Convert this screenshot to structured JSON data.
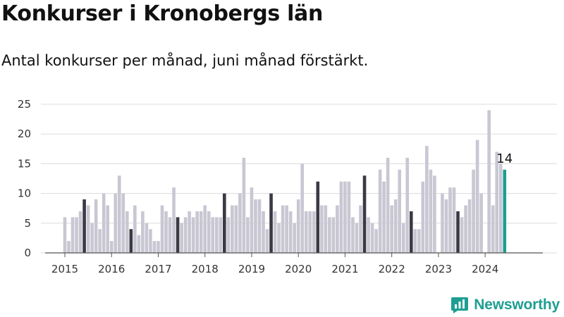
{
  "title": "Konkurser i Kronobergs län",
  "subtitle": "Antal konkurser per månad, juni månad förstärkt.",
  "brand": "Newsworthy",
  "colors": {
    "bar": "#c8c7d3",
    "highlight": "#3a3a46",
    "latest": "#1e9e92",
    "grid": "#dcdcdc",
    "axis": "#555555",
    "brand": "#1e9e92"
  },
  "chart_data": {
    "type": "bar",
    "start": "2015-01",
    "highlight_month": "06",
    "y_ticks": [
      0,
      5,
      10,
      15,
      20,
      25
    ],
    "ylim": [
      0,
      25
    ],
    "x_tick_labels": [
      "2015",
      "2016",
      "2017",
      "2018",
      "2019",
      "2020",
      "2021",
      "2022",
      "2023",
      "2024"
    ],
    "grid": true,
    "last_value_label": "14",
    "values": [
      6,
      2,
      6,
      6,
      7,
      9,
      8,
      5,
      9,
      4,
      10,
      8,
      2,
      10,
      13,
      10,
      7,
      4,
      8,
      3,
      7,
      5,
      4,
      2,
      2,
      8,
      7,
      6,
      11,
      6,
      5,
      6,
      7,
      6,
      7,
      7,
      8,
      7,
      6,
      6,
      6,
      10,
      6,
      8,
      8,
      10,
      16,
      6,
      11,
      9,
      9,
      7,
      4,
      10,
      7,
      5,
      8,
      8,
      7,
      5,
      9,
      15,
      7,
      7,
      7,
      12,
      8,
      8,
      6,
      6,
      8,
      12,
      12,
      12,
      6,
      5,
      8,
      13,
      6,
      5,
      4,
      14,
      12,
      16,
      8,
      9,
      14,
      5,
      16,
      7,
      4,
      4,
      12,
      18,
      14,
      13,
      0,
      10,
      9,
      11,
      11,
      7,
      6,
      8,
      9,
      14,
      19,
      10,
      0,
      24,
      8,
      17,
      15,
      14
    ]
  }
}
